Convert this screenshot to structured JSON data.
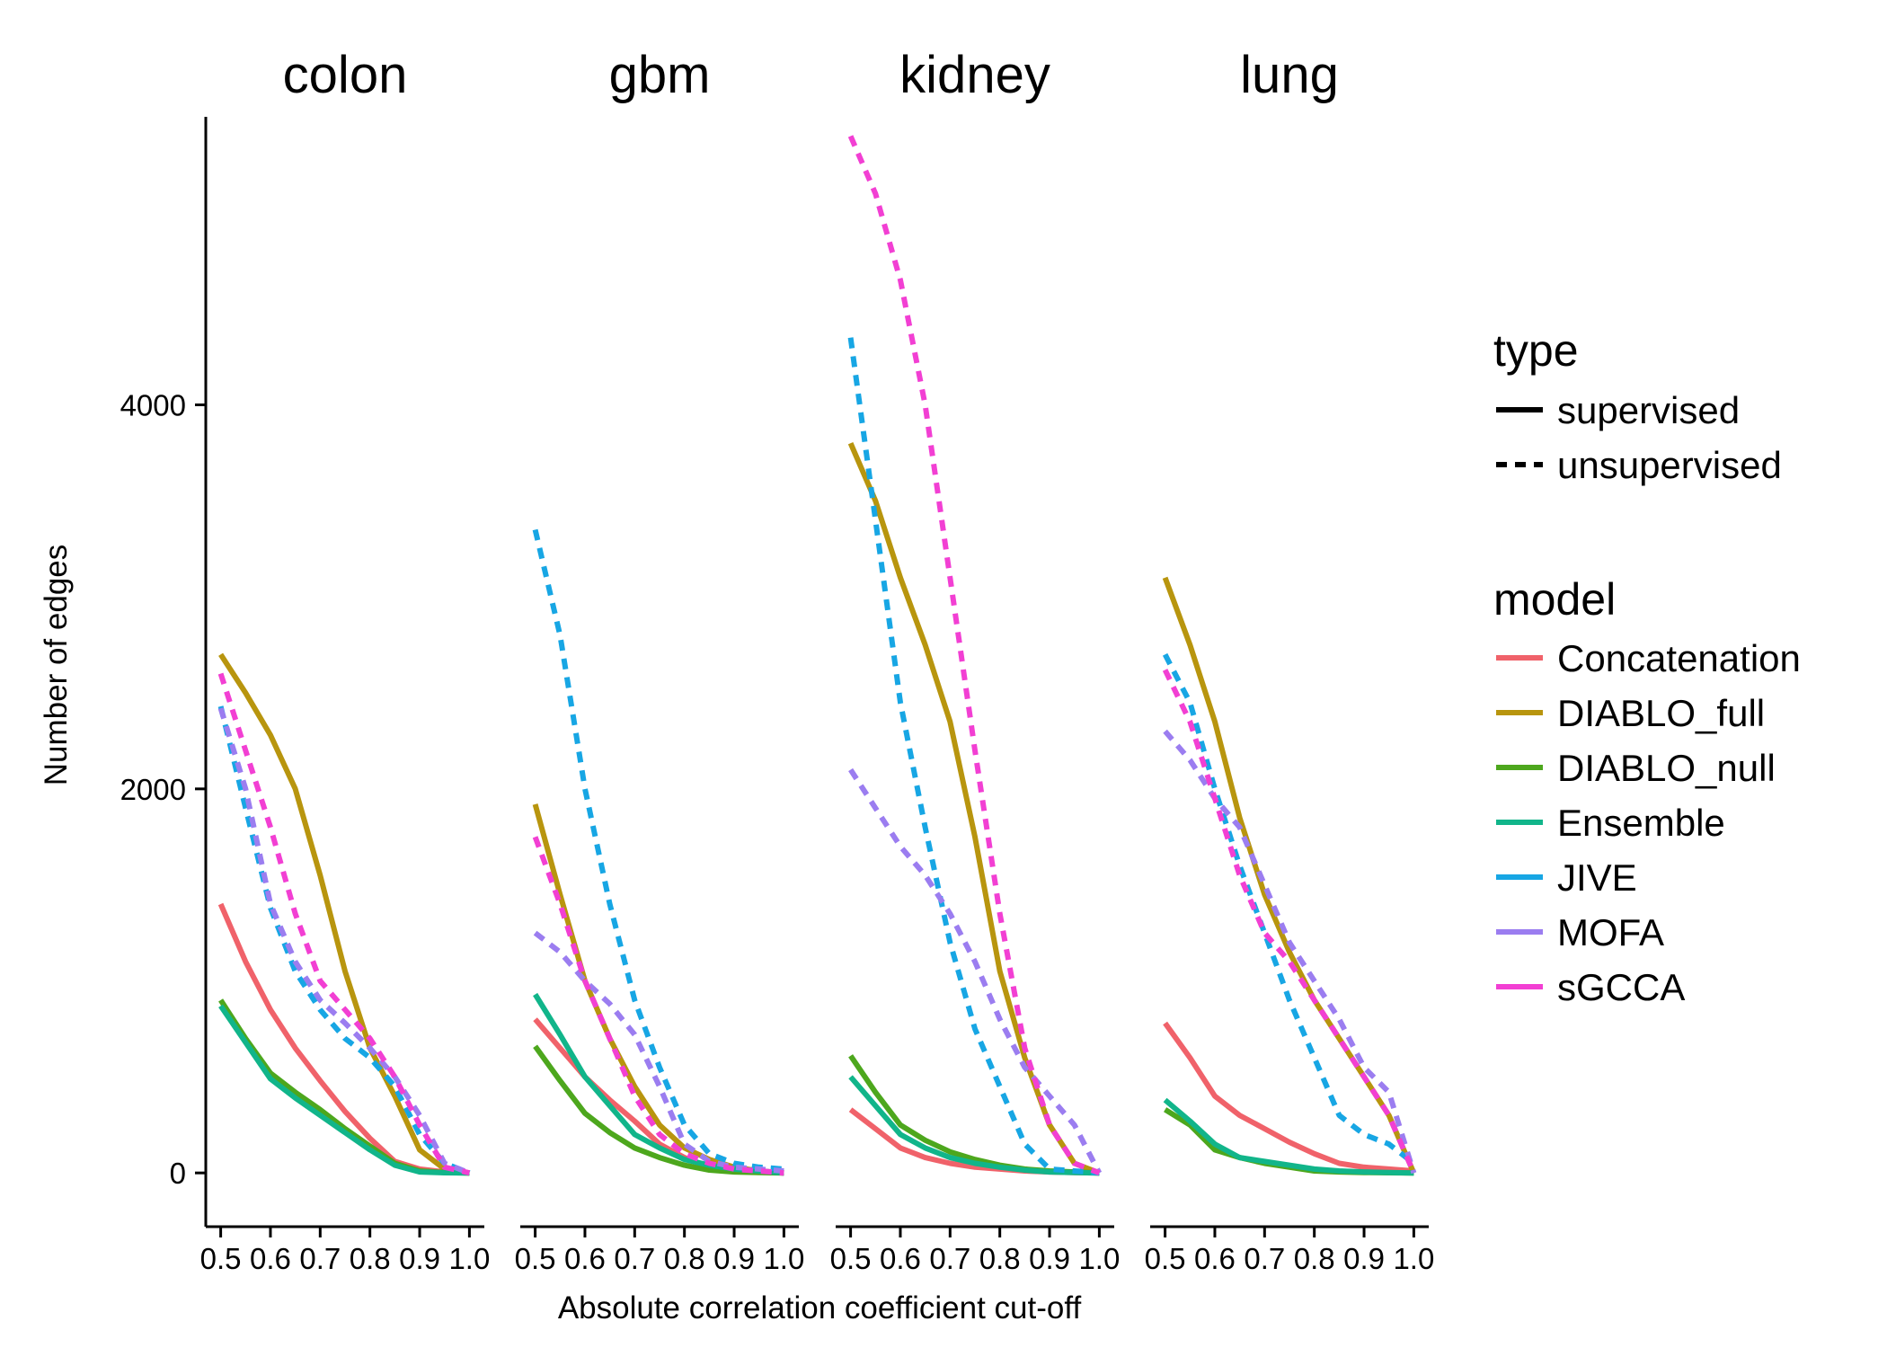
{
  "chart_data": {
    "type": "line",
    "xlabel": "Absolute correlation coefficient cut-off",
    "ylabel": "Number of edges",
    "ylim": [
      -280,
      5500
    ],
    "y_ticks": [
      "0",
      "2000",
      "4000"
    ],
    "y_tick_values": [
      0,
      2000,
      4000
    ],
    "x_ticks": [
      "0.5",
      "0.6",
      "0.7",
      "0.8",
      "0.9",
      "1.0"
    ],
    "x_tick_values": [
      0.5,
      0.6,
      0.7,
      0.8,
      0.9,
      1.0
    ],
    "xlim": [
      0.47,
      1.03
    ],
    "x": [
      0.5,
      0.55,
      0.6,
      0.65,
      0.7,
      0.75,
      0.8,
      0.85,
      0.9,
      0.95,
      1.0
    ],
    "grid": false,
    "legend_placement": "right",
    "legend": {
      "type": {
        "title": "type",
        "items": [
          {
            "label": "supervised",
            "dash": "solid"
          },
          {
            "label": "unsupervised",
            "dash": "dashed"
          }
        ]
      },
      "model": {
        "title": "model",
        "items": [
          {
            "label": "Concatenation",
            "color": "#F0626A",
            "type": "supervised"
          },
          {
            "label": "DIABLO_full",
            "color": "#B8950E",
            "type": "supervised"
          },
          {
            "label": "DIABLO_null",
            "color": "#4DA71D",
            "type": "supervised"
          },
          {
            "label": "Ensemble",
            "color": "#11B58A",
            "type": "supervised"
          },
          {
            "label": "JIVE",
            "color": "#17A6E4",
            "type": "unsupervised"
          },
          {
            "label": "MOFA",
            "color": "#9B7DF0",
            "type": "unsupervised"
          },
          {
            "label": "sGCCA",
            "color": "#F23FD3",
            "type": "unsupervised"
          }
        ]
      }
    },
    "facets": [
      {
        "title": "colon",
        "series": [
          {
            "name": "Concatenation",
            "values": [
              1400,
              1100,
              850,
              650,
              480,
              320,
              180,
              60,
              20,
              5,
              0
            ]
          },
          {
            "name": "DIABLO_full",
            "values": [
              2700,
              2500,
              2280,
              2000,
              1550,
              1050,
              650,
              400,
              120,
              20,
              0
            ]
          },
          {
            "name": "DIABLO_null",
            "values": [
              900,
              700,
              520,
              420,
              330,
              230,
              140,
              50,
              10,
              2,
              0
            ]
          },
          {
            "name": "Ensemble",
            "values": [
              870,
              680,
              490,
              390,
              300,
              210,
              120,
              40,
              5,
              1,
              0
            ]
          },
          {
            "name": "JIVE",
            "values": [
              2430,
              1900,
              1380,
              1050,
              850,
              700,
              600,
              450,
              200,
              50,
              0
            ]
          },
          {
            "name": "MOFA",
            "values": [
              2420,
              2000,
              1400,
              1100,
              900,
              780,
              650,
              500,
              300,
              50,
              0
            ]
          },
          {
            "name": "sGCCA",
            "values": [
              2600,
              2200,
              1800,
              1350,
              1000,
              850,
              700,
              500,
              250,
              30,
              0
            ]
          }
        ]
      },
      {
        "title": "gbm",
        "series": [
          {
            "name": "Concatenation",
            "values": [
              800,
              650,
              500,
              380,
              270,
              150,
              80,
              30,
              10,
              5,
              0
            ]
          },
          {
            "name": "DIABLO_full",
            "values": [
              1920,
              1450,
              1000,
              700,
              450,
              250,
              130,
              70,
              30,
              10,
              0
            ]
          },
          {
            "name": "DIABLO_null",
            "values": [
              660,
              480,
              310,
              210,
              130,
              80,
              40,
              15,
              5,
              2,
              0
            ]
          },
          {
            "name": "Ensemble",
            "values": [
              930,
              720,
              500,
              350,
              200,
              130,
              70,
              40,
              20,
              10,
              0
            ]
          },
          {
            "name": "JIVE",
            "values": [
              3350,
              2800,
              2000,
              1400,
              900,
              550,
              250,
              100,
              50,
              30,
              20
            ]
          },
          {
            "name": "MOFA",
            "values": [
              1250,
              1150,
              1000,
              880,
              720,
              450,
              150,
              60,
              30,
              20,
              10
            ]
          },
          {
            "name": "sGCCA",
            "values": [
              1750,
              1400,
              1000,
              700,
              400,
              200,
              100,
              50,
              20,
              10,
              0
            ]
          }
        ]
      },
      {
        "title": "kidney",
        "series": [
          {
            "name": "Concatenation",
            "values": [
              330,
              230,
              130,
              80,
              50,
              30,
              20,
              10,
              5,
              2,
              0
            ]
          },
          {
            "name": "DIABLO_full",
            "values": [
              3800,
              3500,
              3100,
              2750,
              2350,
              1750,
              1050,
              600,
              250,
              50,
              0
            ]
          },
          {
            "name": "DIABLO_null",
            "values": [
              610,
              420,
              250,
              170,
              110,
              70,
              40,
              20,
              10,
              5,
              0
            ]
          },
          {
            "name": "Ensemble",
            "values": [
              500,
              350,
              200,
              130,
              80,
              50,
              30,
              15,
              5,
              2,
              0
            ]
          },
          {
            "name": "JIVE",
            "values": [
              4350,
              3400,
              2450,
              1800,
              1200,
              750,
              450,
              150,
              20,
              10,
              0
            ]
          },
          {
            "name": "MOFA",
            "values": [
              2100,
              1900,
              1700,
              1550,
              1350,
              1100,
              800,
              550,
              400,
              250,
              0
            ]
          },
          {
            "name": "sGCCA",
            "values": [
              5400,
              5100,
              4650,
              4000,
              3100,
              2200,
              1350,
              650,
              250,
              50,
              0
            ]
          }
        ]
      },
      {
        "title": "lung",
        "series": [
          {
            "name": "Concatenation",
            "values": [
              780,
              600,
              400,
              300,
              230,
              160,
              100,
              50,
              30,
              20,
              10
            ]
          },
          {
            "name": "DIABLO_full",
            "values": [
              3100,
              2750,
              2350,
              1850,
              1450,
              1150,
              900,
              700,
              500,
              300,
              0
            ]
          },
          {
            "name": "DIABLO_null",
            "values": [
              330,
              250,
              120,
              80,
              50,
              30,
              10,
              5,
              2,
              1,
              0
            ]
          },
          {
            "name": "Ensemble",
            "values": [
              380,
              270,
              150,
              80,
              60,
              40,
              20,
              10,
              5,
              2,
              0
            ]
          },
          {
            "name": "JIVE",
            "values": [
              2700,
              2450,
              2000,
              1600,
              1250,
              900,
              600,
              300,
              200,
              150,
              50
            ]
          },
          {
            "name": "MOFA",
            "values": [
              2300,
              2150,
              1950,
              1800,
              1500,
              1200,
              1000,
              800,
              550,
              420,
              0
            ]
          },
          {
            "name": "sGCCA",
            "values": [
              2620,
              2350,
              1950,
              1550,
              1250,
              1100,
              900,
              700,
              500,
              300,
              0
            ]
          }
        ]
      }
    ]
  }
}
